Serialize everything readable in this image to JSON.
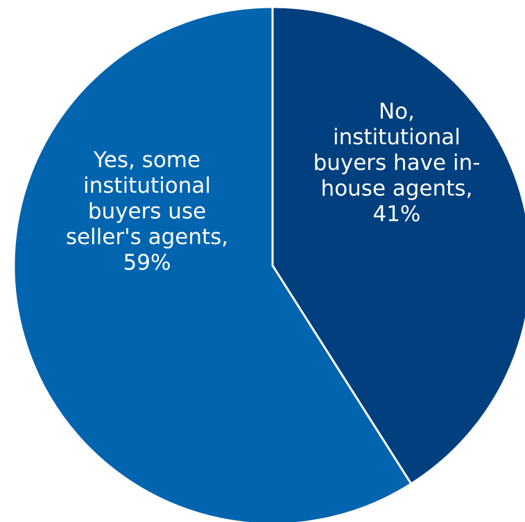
{
  "chart_data": {
    "type": "pie",
    "start": "top",
    "direction": "clockwise",
    "slices": [
      {
        "label_lines": [
          "No,",
          "institutional",
          "buyers have in-",
          "house agents,",
          "41%"
        ],
        "value": 41,
        "color": "#023F7E"
      },
      {
        "label_lines": [
          "Yes, some",
          "institutional",
          "buyers use",
          "seller's agents,",
          "59%"
        ],
        "value": 59,
        "color": "#0164AF"
      }
    ]
  }
}
